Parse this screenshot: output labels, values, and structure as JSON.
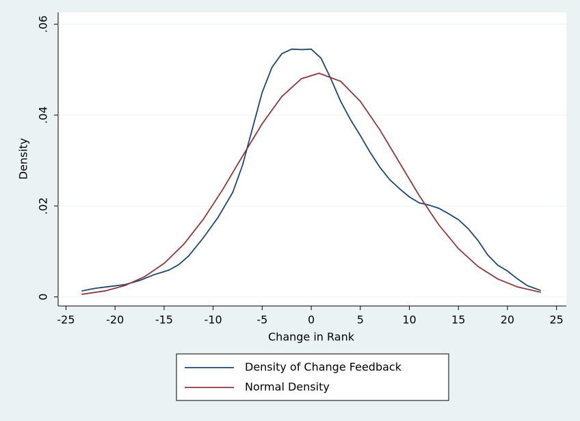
{
  "chart_data": {
    "type": "line",
    "xlabel": "Change in Rank",
    "ylabel": "Density",
    "xlim": [
      -25.8,
      26
    ],
    "ylim": [
      -0.002,
      0.0626
    ],
    "xticks": [
      -25,
      -20,
      -15,
      -10,
      -5,
      0,
      5,
      10,
      15,
      20,
      25
    ],
    "yticks": [
      {
        "value": 0,
        "label": "0"
      },
      {
        "value": 0.02,
        "label": ".02"
      },
      {
        "value": 0.04,
        "label": ".04"
      },
      {
        "value": 0.06,
        "label": ".06"
      }
    ],
    "grid": true,
    "series": [
      {
        "name": "Density of Change Feedback",
        "color": "#1a476f",
        "x": [
          -23.4,
          -22,
          -20.5,
          -19,
          -17.5,
          -16,
          -14.5,
          -13.5,
          -12.5,
          -11,
          -9.5,
          -8,
          -7,
          -6,
          -5,
          -4,
          -3,
          -2,
          -1,
          0,
          1,
          2,
          3,
          4,
          5,
          6,
          7,
          8,
          9,
          10,
          11,
          12,
          13,
          14,
          15,
          16,
          17,
          18,
          19,
          20,
          21,
          22,
          23.4
        ],
        "values": [
          0.0013,
          0.0019,
          0.0023,
          0.0027,
          0.0036,
          0.0049,
          0.0059,
          0.0071,
          0.009,
          0.013,
          0.0175,
          0.023,
          0.029,
          0.037,
          0.045,
          0.0505,
          0.0535,
          0.0545,
          0.0544,
          0.0545,
          0.0525,
          0.048,
          0.043,
          0.039,
          0.0355,
          0.0318,
          0.0285,
          0.0258,
          0.0238,
          0.022,
          0.0207,
          0.0202,
          0.0195,
          0.0183,
          0.017,
          0.015,
          0.0124,
          0.0092,
          0.007,
          0.0057,
          0.004,
          0.0025,
          0.0014
        ]
      },
      {
        "name": "Normal Density",
        "color": "#90353b",
        "x": [
          -23.4,
          -21,
          -19,
          -17,
          -15,
          -13,
          -11,
          -9,
          -7,
          -5,
          -3,
          -1,
          0.8,
          3,
          5,
          7,
          9,
          11,
          13,
          15,
          17,
          19,
          21,
          23.4
        ],
        "values": [
          0.00057,
          0.00132,
          0.0025,
          0.00442,
          0.00737,
          0.01156,
          0.01707,
          0.0237,
          0.03098,
          0.03809,
          0.04408,
          0.048,
          0.0492,
          0.04742,
          0.04303,
          0.03673,
          0.02951,
          0.0223,
          0.01586,
          0.01062,
          0.00669,
          0.00396,
          0.00221,
          0.00101
        ]
      }
    ]
  }
}
